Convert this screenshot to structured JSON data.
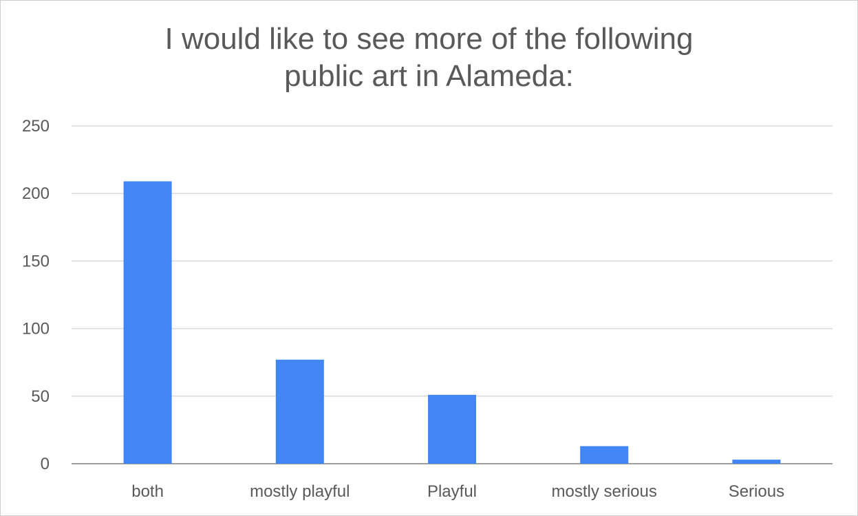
{
  "chart_data": {
    "type": "bar",
    "title_line1": "I would like to see more of the following",
    "title_line2": "public art in Alameda:",
    "categories": [
      "both",
      "mostly playful",
      "Playful",
      "mostly serious",
      "Serious"
    ],
    "values": [
      209,
      77,
      51,
      13,
      3
    ],
    "ylim": [
      0,
      250
    ],
    "yticks": [
      0,
      50,
      100,
      150,
      200,
      250
    ],
    "grid": true,
    "colors": {
      "bar": "#4285f4",
      "grid": "#d9d9d9",
      "text": "#595959"
    }
  }
}
